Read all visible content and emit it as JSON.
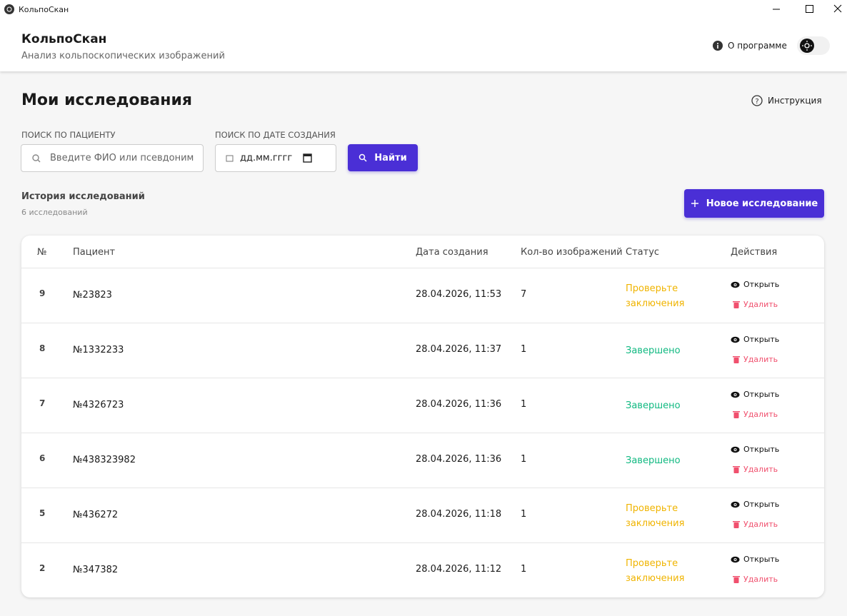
{
  "window": {
    "title": "КольпоСкан"
  },
  "header": {
    "title": "КольпоСкан",
    "subtitle": "Анализ кольпоскопических изображений",
    "about": "О программе"
  },
  "page": {
    "title": "Мои исследования",
    "help": "Инструкция"
  },
  "search": {
    "patient_label": "ПОИСК ПО ПАЦИЕНТУ",
    "patient_placeholder": "Введите ФИО или псевдоним",
    "date_label": "ПОИСК ПО ДАТЕ СОЗДАНИЯ",
    "date_placeholder": "дд.мм.гггг",
    "button": "Найти"
  },
  "history": {
    "title": "История исследований",
    "count": "6 исследований",
    "new_button": "Новое исследование"
  },
  "table": {
    "columns": [
      "№",
      "Пациент",
      "Дата создания",
      "Кол-во изображений",
      "Статус",
      "Действия"
    ],
    "actions": {
      "open": "Открыть",
      "delete": "Удалить"
    },
    "rows": [
      {
        "no": 9,
        "patient": "№23823",
        "date": "28.04.2026, 11:53",
        "images": 7,
        "status": "Проверьте заключения",
        "status_color": "#f0b400"
      },
      {
        "no": 8,
        "patient": "№1332233",
        "date": "28.04.2026, 11:37",
        "images": 1,
        "status": "Завершено",
        "status_color": "#10b981"
      },
      {
        "no": 7,
        "patient": "№4326723",
        "date": "28.04.2026, 11:36",
        "images": 1,
        "status": "Завершено",
        "status_color": "#10b981"
      },
      {
        "no": 6,
        "patient": "№438323982",
        "date": "28.04.2026, 11:36",
        "images": 1,
        "status": "Завершено",
        "status_color": "#10b981"
      },
      {
        "no": 5,
        "patient": "№436272",
        "date": "28.04.2026, 11:18",
        "images": 1,
        "status": "Проверьте заключения",
        "status_color": "#f0b400"
      },
      {
        "no": 2,
        "patient": "№347382",
        "date": "28.04.2026, 11:12",
        "images": 1,
        "status": "Проверьте заключения",
        "status_color": "#f0b400"
      }
    ]
  }
}
